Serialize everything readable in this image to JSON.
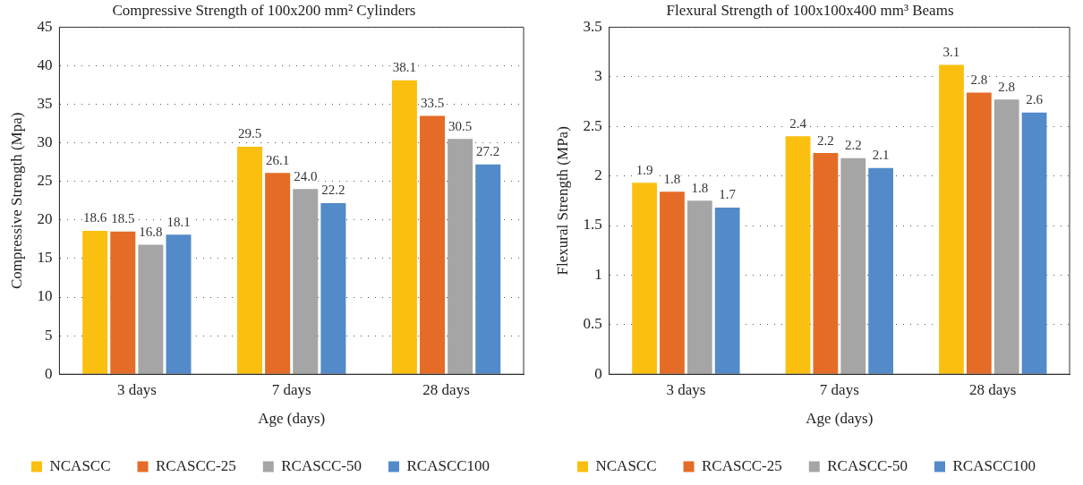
{
  "chart_data": [
    {
      "type": "bar",
      "title": "Compressive Strength of 100x200 mm² Cylinders",
      "xlabel": "Age (days)",
      "ylabel": "Compressive Strength (Mpa)",
      "categories": [
        "3 days",
        "7 days",
        "28 days"
      ],
      "series": [
        {
          "name": "NCASCC",
          "color": "#fbbf10",
          "values": [
            18.6,
            29.5,
            38.1
          ]
        },
        {
          "name": "RCASCC-25",
          "color": "#e46c26",
          "values": [
            18.5,
            26.1,
            33.5
          ]
        },
        {
          "name": "RCASCC-50",
          "color": "#a5a5a5",
          "values": [
            16.8,
            24.0,
            30.5
          ],
          "value_labels": [
            "16.8",
            "24.0",
            "30.5"
          ]
        },
        {
          "name": "RCASCC100",
          "color": "#538ac9",
          "values": [
            18.1,
            22.2,
            27.2
          ]
        }
      ],
      "ylim": [
        0,
        45
      ],
      "yticks": [
        0,
        5,
        10,
        15,
        20,
        25,
        30,
        35,
        40,
        45
      ],
      "grid": "y",
      "legend": "bottom",
      "data_labels": true
    },
    {
      "type": "bar",
      "title": "Flexural Strength of 100x100x400 mm³ Beams",
      "xlabel": "Age (days)",
      "ylabel": "Flexural Strength (MPa)",
      "categories": [
        "3 days",
        "7 days",
        "28 days"
      ],
      "series": [
        {
          "name": "NCASCC",
          "color": "#fbbf10",
          "values": [
            1.93,
            2.4,
            3.12
          ],
          "value_labels": [
            "1.9",
            "2.4",
            "3.1"
          ]
        },
        {
          "name": "RCASCC-25",
          "color": "#e46c26",
          "values": [
            1.84,
            2.23,
            2.84
          ],
          "value_labels": [
            "1.8",
            "2.2",
            "2.8"
          ]
        },
        {
          "name": "RCASCC-50",
          "color": "#a5a5a5",
          "values": [
            1.75,
            2.18,
            2.77
          ],
          "value_labels": [
            "1.8",
            "2.2",
            "2.8"
          ]
        },
        {
          "name": "RCASCC100",
          "color": "#538ac9",
          "values": [
            1.68,
            2.08,
            2.64
          ],
          "value_labels": [
            "1.7",
            "2.1",
            "2.6"
          ]
        }
      ],
      "ylim": [
        0,
        3.5
      ],
      "yticks": [
        0,
        0.5,
        1,
        1.5,
        2,
        2.5,
        3,
        3.5
      ],
      "grid": "y",
      "legend": "bottom"
    }
  ]
}
